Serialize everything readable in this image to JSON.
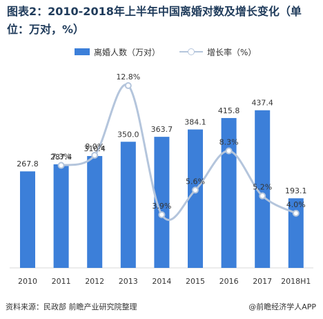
{
  "chart_data": {
    "type": "bar",
    "title": "图表2：2010-2018年上半年中国离婚对数及增长变化（单位：万对，%）",
    "categories": [
      "2010",
      "2011",
      "2012",
      "2013",
      "2014",
      "2015",
      "2016",
      "2017",
      "2018H1"
    ],
    "series": [
      {
        "name": "离婚人数（万对）",
        "type": "bar",
        "values": [
          267.8,
          287.4,
          310.4,
          350.0,
          363.7,
          384.1,
          415.8,
          437.4,
          193.1
        ],
        "labels": [
          "267.8",
          "287.4",
          "310.4",
          "350.0",
          "363.7",
          "384.1",
          "415.8",
          "437.4",
          "193.1"
        ],
        "color": "#3c7fd9"
      },
      {
        "name": "增长率（%）",
        "type": "line",
        "values": [
          null,
          7.3,
          8.0,
          12.8,
          3.9,
          5.6,
          8.3,
          5.2,
          4.0
        ],
        "labels": [
          "",
          "7.3%",
          "8.0%",
          "12.8%",
          "3.9%",
          "5.6%",
          "8.3%",
          "5.2%",
          "4.0%"
        ],
        "color": "#b4c5dc"
      }
    ],
    "legend_position": "top"
  },
  "footer": {
    "source": "资料来源：民政部 前瞻产业研究院整理",
    "brand": "@前瞻经济学人APP"
  }
}
